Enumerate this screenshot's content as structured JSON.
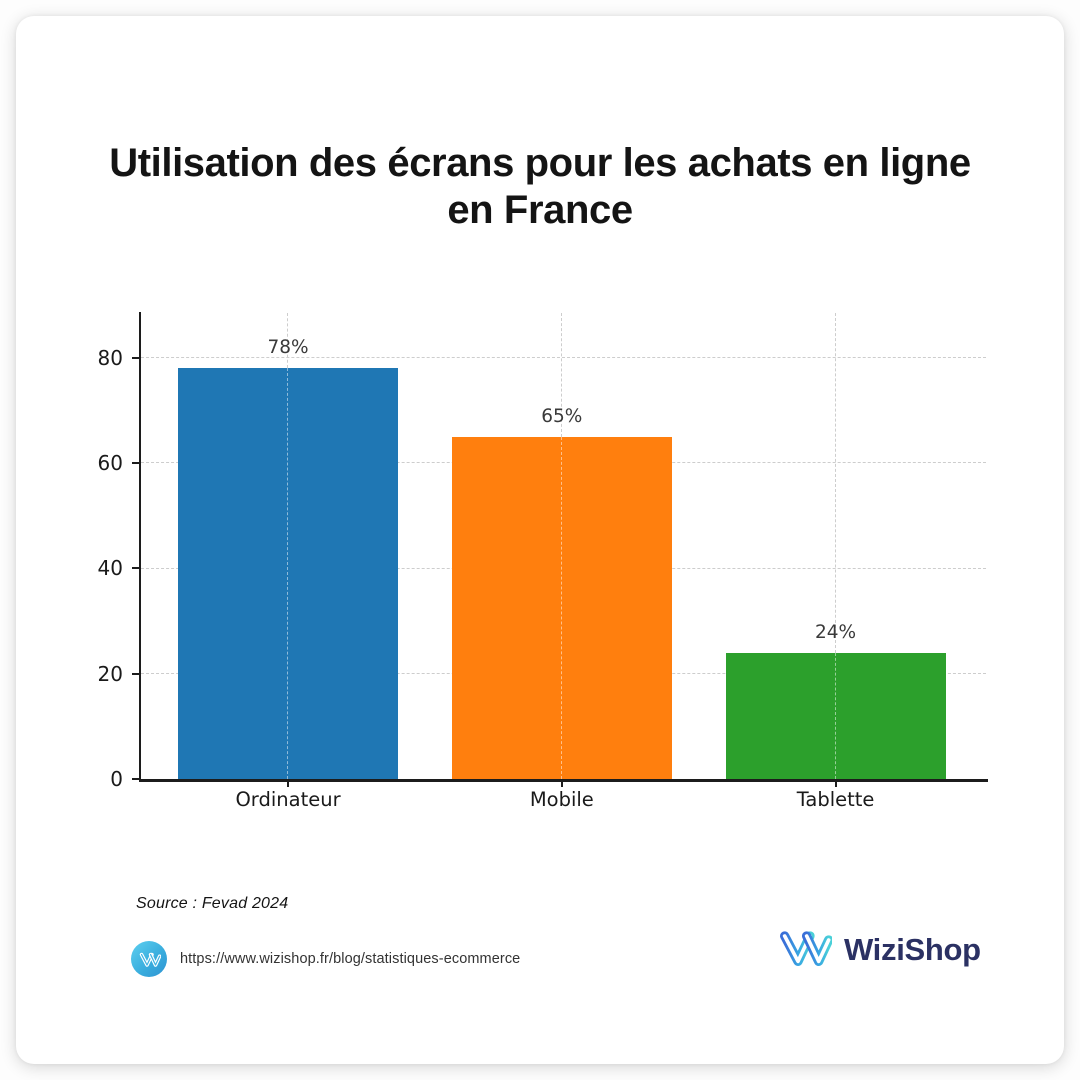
{
  "title": "Utilisation des écrans pour les achats en ligne en France",
  "chart_data": {
    "type": "bar",
    "categories": [
      "Ordinateur",
      "Mobile",
      "Tablette"
    ],
    "values": [
      78,
      65,
      24
    ],
    "value_labels": [
      "78%",
      "65%",
      "24%"
    ],
    "bar_colors": [
      "#1f77b4",
      "#ff7f0e",
      "#2ca02c"
    ],
    "title": "Utilisation des écrans pour les achats en ligne en France",
    "xlabel": "",
    "ylabel": "",
    "yticks": [
      0,
      20,
      40,
      60,
      80
    ],
    "ylim": [
      0,
      88.5
    ],
    "grid": "dashed-both-axes",
    "legend": "none"
  },
  "footer": {
    "source": "Source : Fevad 2024",
    "url": "https://www.wizishop.fr/blog/statistiques-ecommerce",
    "brand": "WiziShop"
  },
  "colors": {
    "axis": "#1c1c1c",
    "grid": "#cdcdcd",
    "title_text": "#141414",
    "tick_text": "#1a1a1a",
    "value_text": "#3a3a3a",
    "brand_navy": "#2b3163",
    "icon_gradient_start": "#5ed0f0",
    "icon_gradient_end": "#2e93d2",
    "logo_gradient": [
      "#3a6fd8",
      "#38a6e2",
      "#4ad0d8"
    ]
  },
  "icons": {
    "url_badge": "wizishop-w-icon",
    "brand_mark": "wizishop-w-logo"
  }
}
